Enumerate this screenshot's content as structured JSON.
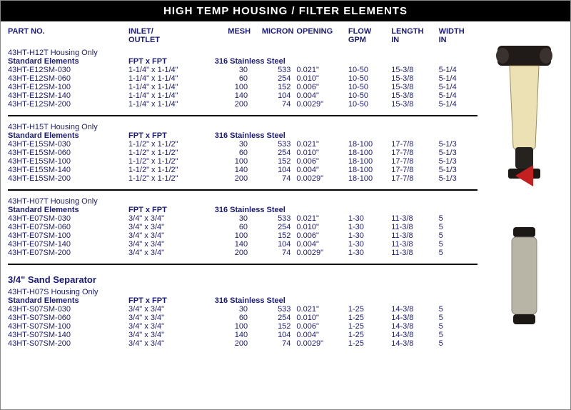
{
  "title": "HIGH TEMP HOUSING / FILTER ELEMENTS",
  "columns": {
    "part": "PART NO.",
    "inlet": "INLET/\nOUTLET",
    "mesh": "MESH",
    "micron": "MICRON",
    "opening": "OPENING",
    "flow": "FLOW\nGPM",
    "length": "LENGTH\nIN",
    "width": "WIDTH\nIN"
  },
  "sections": [
    {
      "housing": "43HT-H12T Housing Only",
      "sub_label": "Standard Elements",
      "fitting": "FPT x FPT",
      "material": "316 Stainless Steel",
      "rows": [
        {
          "part": "43HT-E12SM-030",
          "io": "1-1/4\" x 1-1/4\"",
          "mesh": "30",
          "micron": "533",
          "open": "0.021\"",
          "flow": "10-50",
          "len": "15-3/8",
          "wid": "5-1/4"
        },
        {
          "part": "43HT-E12SM-060",
          "io": "1-1/4\" x 1-1/4\"",
          "mesh": "60",
          "micron": "254",
          "open": "0.010\"",
          "flow": "10-50",
          "len": "15-3/8",
          "wid": "5-1/4"
        },
        {
          "part": "43HT-E12SM-100",
          "io": "1-1/4\" x 1-1/4\"",
          "mesh": "100",
          "micron": "152",
          "open": "0.006\"",
          "flow": "10-50",
          "len": "15-3/8",
          "wid": "5-1/4"
        },
        {
          "part": "43HT-E12SM-140",
          "io": "1-1/4\" x 1-1/4\"",
          "mesh": "140",
          "micron": "104",
          "open": "0.004\"",
          "flow": "10-50",
          "len": "15-3/8",
          "wid": "5-1/4"
        },
        {
          "part": "43HT-E12SM-200",
          "io": "1-1/4\" x 1-1/4\"",
          "mesh": "200",
          "micron": "74",
          "open": "0.0029\"",
          "flow": "10-50",
          "len": "15-3/8",
          "wid": "5-1/4"
        }
      ]
    },
    {
      "housing": "43HT-H15T Housing Only",
      "sub_label": "Standard Elements",
      "fitting": "FPT x FPT",
      "material": "316 Stainless Steel",
      "rows": [
        {
          "part": "43HT-E15SM-030",
          "io": "1-1/2\" x 1-1/2\"",
          "mesh": "30",
          "micron": "533",
          "open": "0.021\"",
          "flow": "18-100",
          "len": "17-7/8",
          "wid": "5-1/3"
        },
        {
          "part": "43HT-E15SM-060",
          "io": "1-1/2\" x 1-1/2\"",
          "mesh": "60",
          "micron": "254",
          "open": "0.010\"",
          "flow": "18-100",
          "len": "17-7/8",
          "wid": "5-1/3"
        },
        {
          "part": "43HT-E15SM-100",
          "io": "1-1/2\" x 1-1/2\"",
          "mesh": "100",
          "micron": "152",
          "open": "0.006\"",
          "flow": "18-100",
          "len": "17-7/8",
          "wid": "5-1/3"
        },
        {
          "part": "43HT-E15SM-140",
          "io": "1-1/2\" x 1-1/2\"",
          "mesh": "140",
          "micron": "104",
          "open": "0.004\"",
          "flow": "18-100",
          "len": "17-7/8",
          "wid": "5-1/3"
        },
        {
          "part": "43HT-E15SM-200",
          "io": "1-1/2\" x 1-1/2\"",
          "mesh": "200",
          "micron": "74",
          "open": "0.0029\"",
          "flow": "18-100",
          "len": "17-7/8",
          "wid": "5-1/3"
        }
      ]
    },
    {
      "housing": "43HT-H07T Housing Only",
      "sub_label": "Standard Elements",
      "fitting": "FPT x FPT",
      "material": "316 Stainless Steel",
      "rows": [
        {
          "part": "43HT-E07SM-030",
          "io": "3/4\" x 3/4\"",
          "mesh": "30",
          "micron": "533",
          "open": "0.021\"",
          "flow": "1-30",
          "len": "11-3/8",
          "wid": "5"
        },
        {
          "part": "43HT-E07SM-060",
          "io": "3/4\" x 3/4\"",
          "mesh": "60",
          "micron": "254",
          "open": "0.010\"",
          "flow": "1-30",
          "len": "11-3/8",
          "wid": "5"
        },
        {
          "part": "43HT-E07SM-100",
          "io": "3/4\" x 3/4\"",
          "mesh": "100",
          "micron": "152",
          "open": "0.006\"",
          "flow": "1-30",
          "len": "11-3/8",
          "wid": "5"
        },
        {
          "part": "43HT-E07SM-140",
          "io": "3/4\" x 3/4\"",
          "mesh": "140",
          "micron": "104",
          "open": "0.004\"",
          "flow": "1-30",
          "len": "11-3/8",
          "wid": "5"
        },
        {
          "part": "43HT-E07SM-200",
          "io": "3/4\" x 3/4\"",
          "mesh": "200",
          "micron": "74",
          "open": "0.0029\"",
          "flow": "1-30",
          "len": "11-3/8",
          "wid": "5"
        }
      ]
    },
    {
      "extra_header": "3/4\" Sand Separator",
      "housing": "43HT-H07S Housing Only",
      "sub_label": "Standard Elements",
      "fitting": "FPT x FPT",
      "material": "316 Stainless Steel",
      "rows": [
        {
          "part": "43HT-S07SM-030",
          "io": "3/4\" x 3/4\"",
          "mesh": "30",
          "micron": "533",
          "open": "0.021\"",
          "flow": "1-25",
          "len": "14-3/8",
          "wid": "5"
        },
        {
          "part": "43HT-S07SM-060",
          "io": "3/4\" x 3/4\"",
          "mesh": "60",
          "micron": "254",
          "open": "0.010\"",
          "flow": "1-25",
          "len": "14-3/8",
          "wid": "5"
        },
        {
          "part": "43HT-S07SM-100",
          "io": "3/4\" x 3/4\"",
          "mesh": "100",
          "micron": "152",
          "open": "0.006\"",
          "flow": "1-25",
          "len": "14-3/8",
          "wid": "5"
        },
        {
          "part": "43HT-S07SM-140",
          "io": "3/4\" x 3/4\"",
          "mesh": "140",
          "micron": "104",
          "open": "0.004\"",
          "flow": "1-25",
          "len": "14-3/8",
          "wid": "5"
        },
        {
          "part": "43HT-S07SM-200",
          "io": "3/4\" x 3/4\"",
          "mesh": "200",
          "micron": "74",
          "open": "0.0029\"",
          "flow": "1-25",
          "len": "14-3/8",
          "wid": "5"
        }
      ]
    }
  ],
  "colors": {
    "title_bg": "#000000",
    "title_fg": "#ffffff",
    "text": "#1a1a7a",
    "divider": "#000000"
  },
  "images": {
    "housing_alt": "filter-housing-product",
    "cartridge_alt": "filter-cartridge-product"
  }
}
